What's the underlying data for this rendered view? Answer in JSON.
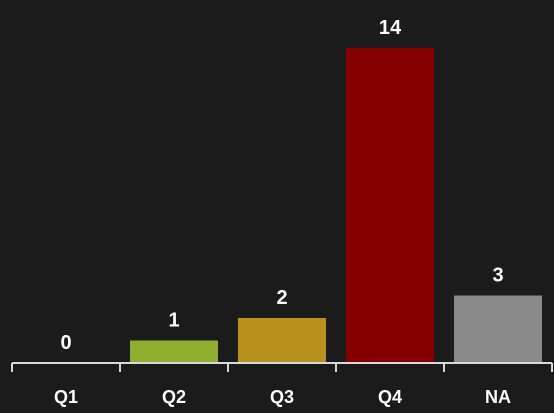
{
  "chart_data": {
    "type": "bar",
    "categories": [
      "Q1",
      "Q2",
      "Q3",
      "Q4",
      "NA"
    ],
    "values": [
      0,
      1,
      2,
      14,
      3
    ],
    "data_labels": [
      "0",
      "1",
      "2",
      "14",
      "3"
    ],
    "colors": [
      "#1b1b1b",
      "#8fae2f",
      "#b8901e",
      "#850000",
      "#8a8a8a"
    ],
    "title": "",
    "xlabel": "",
    "ylabel": "",
    "ylim": [
      0,
      14
    ],
    "grid": false,
    "legend": "none"
  },
  "style": {
    "background": "#1b1b1b",
    "axis_color": "#d9d9d9",
    "text_color": "#ffffff"
  }
}
